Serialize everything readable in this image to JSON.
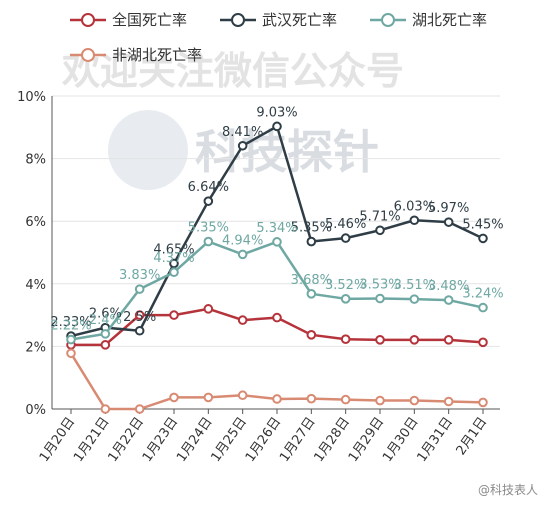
{
  "watermark": {
    "line1": "欢迎关注微信公众号",
    "line2": "科技探针",
    "signature": "@科技表人"
  },
  "chart_data": {
    "type": "line",
    "categories": [
      "1月20日",
      "1月21日",
      "1月22日",
      "1月23日",
      "1月24日",
      "1月25日",
      "1月26日",
      "1月27日",
      "1月28日",
      "1月29日",
      "1月30日",
      "1月31日",
      "2月1日"
    ],
    "ylim": [
      0,
      10
    ],
    "yticks": [
      "0%",
      "2%",
      "4%",
      "6%",
      "8%",
      "10%"
    ],
    "legend_position": "top",
    "grid": "horizontal",
    "series": [
      {
        "name": "全国死亡率",
        "color": "#b5333a",
        "values": [
          2.05,
          2.05,
          3.0,
          3.0,
          3.2,
          2.84,
          2.92,
          2.37,
          2.23,
          2.21,
          2.21,
          2.21,
          2.13
        ],
        "labels": []
      },
      {
        "name": "武汉死亡率",
        "color": "#2f3e46",
        "values": [
          2.33,
          2.6,
          2.5,
          4.65,
          6.64,
          8.41,
          9.03,
          5.35,
          5.46,
          5.71,
          6.03,
          5.97,
          5.45
        ],
        "labels": [
          "2.33%",
          "2.6%",
          "2.5%",
          "4.65%",
          "6.64%",
          "8.41%",
          "9.03%",
          "5.35%",
          "5.46%",
          "5.71%",
          "6.03%",
          "5.97%",
          "5.45%"
        ]
      },
      {
        "name": "湖北死亡率",
        "color": "#6fa8a3",
        "values": [
          2.22,
          2.4,
          3.83,
          4.37,
          5.35,
          4.94,
          5.34,
          3.68,
          3.52,
          3.53,
          3.51,
          3.48,
          3.24
        ],
        "labels": [
          "2.22%",
          "2.4%",
          "3.83%",
          "4.37%",
          "5.35%",
          "4.94%",
          "5.34%",
          "3.68%",
          "3.52%",
          "3.53%",
          "3.51%",
          "3.48%",
          "3.24%"
        ]
      },
      {
        "name": "非湖北死亡率",
        "color": "#d88a72",
        "values": [
          1.78,
          0.0,
          0.0,
          0.37,
          0.37,
          0.44,
          0.32,
          0.33,
          0.3,
          0.27,
          0.27,
          0.24,
          0.21
        ],
        "labels": []
      }
    ]
  }
}
